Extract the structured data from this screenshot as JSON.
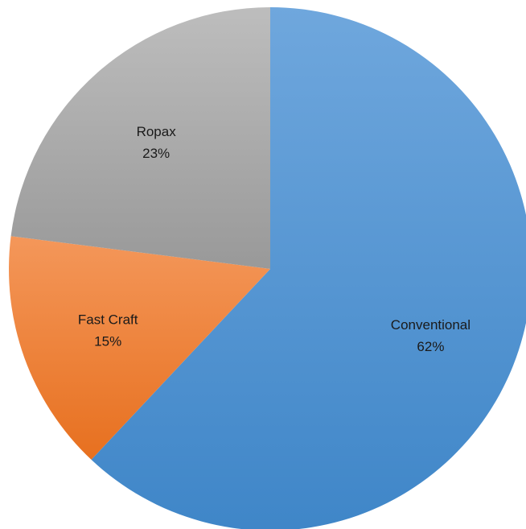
{
  "chart_data": {
    "type": "pie",
    "title": "",
    "start_angle_deg": 0,
    "direction": "clockwise",
    "slices": [
      {
        "label": "Conventional",
        "value": 62,
        "value_label": "62%",
        "color_top": "#6fa7dd",
        "color_bottom": "#3f86c8"
      },
      {
        "label": "Fast Craft",
        "value": 15,
        "value_label": "15%",
        "color_top": "#f4975a",
        "color_bottom": "#e7701f"
      },
      {
        "label": "Ropax",
        "value": 23,
        "value_label": "23%",
        "color_top": "#bdbdbd",
        "color_bottom": "#999999"
      }
    ]
  }
}
